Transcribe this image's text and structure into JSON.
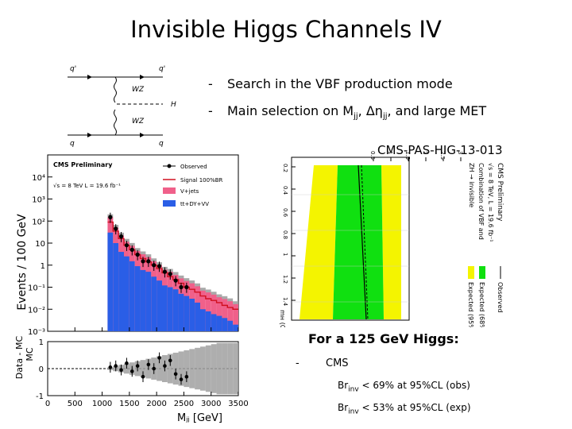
{
  "slide": {
    "title": "Invisible Higgs Channels IV",
    "bullets": [
      {
        "dash": "-",
        "pre": "Search in the VBF production mode",
        "sub": "",
        "mid": "",
        "sub2": "",
        "post": ""
      },
      {
        "dash": "-",
        "pre": "Main selection on M",
        "sub": "jj",
        "mid": ", Δη",
        "sub2": "jj",
        "post": ", and large MET"
      }
    ],
    "cms_tag": "CMS-PAS-HIG-13-013",
    "result_heading": "For a 125 GeV Higgs:",
    "experiment_dash": "-",
    "experiment": "CMS",
    "limits": [
      {
        "label": "Br",
        "sub": "inv",
        "text": " < 69% at 95%CL (obs)"
      },
      {
        "label": "Br",
        "sub": "inv",
        "text": " < 53% at 95%CL (exp)"
      }
    ]
  },
  "feynman": {
    "labels": {
      "q_in_top": "q",
      "q_out_top": "q'",
      "q_in_bot": "q",
      "q_out_bot": "q'",
      "boson_top": "WZ",
      "boson_bot": "WZ",
      "higgs": "H"
    }
  },
  "chart_data": {
    "type": "bar",
    "title": "",
    "header": "CMS Preliminary",
    "energy_label": "√s = 8 TeV L = 19.6 fb⁻¹",
    "ylabel": "Events / 100 GeV",
    "xlabel": "Mⱼⱼ [GeV]",
    "ratio_ylabel": "Data - MC",
    "ratio_ylabel2": "MC",
    "ylog": true,
    "ylim": [
      0.001,
      100000
    ],
    "y_ticks": [
      {
        "v": 10000,
        "label": "10⁴"
      },
      {
        "v": 1000,
        "label": "10³"
      },
      {
        "v": 100,
        "label": "10²"
      },
      {
        "v": 10,
        "label": "10"
      },
      {
        "v": 1,
        "label": "1"
      },
      {
        "v": 0.1,
        "label": "10⁻¹"
      },
      {
        "v": 0.01,
        "label": "10⁻²"
      },
      {
        "v": 0.001,
        "label": "10⁻³"
      }
    ],
    "x_ticks": [
      "0",
      "500",
      "1000",
      "1500",
      "2000",
      "2500",
      "3000",
      "3500"
    ],
    "xlim": [
      0,
      3500
    ],
    "ratio_ylim": [
      -1,
      1
    ],
    "ratio_ticks": [
      "1",
      "0",
      "-1"
    ],
    "legend": {
      "position": "top-right",
      "entries": [
        "Observed",
        "Signal 100%BR",
        "V+jets",
        "tt+DY+VV"
      ]
    },
    "colors": {
      "vjets": "#f0608a",
      "tt": "#2a5ee6",
      "signal": "#d01020",
      "uncert": "#a0a0a0"
    },
    "bin_edges": [
      1100,
      1200,
      1300,
      1400,
      1500,
      1600,
      1700,
      1800,
      1900,
      2000,
      2100,
      2200,
      2300,
      2400,
      2500,
      2600,
      2700,
      2800,
      2900,
      3000,
      3100,
      3200,
      3300,
      3400,
      3500
    ],
    "vjets": [
      120,
      40,
      18,
      9,
      6,
      3.5,
      2.5,
      1.8,
      1.2,
      0.8,
      0.5,
      0.4,
      0.28,
      0.2,
      0.15,
      0.12,
      0.09,
      0.06,
      0.05,
      0.04,
      0.03,
      0.025,
      0.02,
      0.015
    ],
    "tt": [
      30,
      10,
      4,
      2.5,
      1.5,
      0.9,
      0.6,
      0.5,
      0.3,
      0.2,
      0.12,
      0.1,
      0.08,
      0.05,
      0.04,
      0.03,
      0.02,
      0.01,
      0.008,
      0.006,
      0.005,
      0.004,
      0.003,
      0.002
    ],
    "signal": [
      90,
      35,
      16,
      8,
      5,
      3,
      2,
      1.4,
      1,
      0.7,
      0.45,
      0.3,
      0.22,
      0.15,
      0.1,
      0.08,
      0.06,
      0.04,
      0.03,
      0.025,
      0.02,
      0.015,
      0.012,
      0.01
    ],
    "observed": [
      150,
      45,
      20,
      8,
      5,
      3,
      1.5,
      1.5,
      1,
      0.9,
      0.5,
      0.4,
      0.2,
      0.1,
      0.1
    ],
    "ratio": [
      0.05,
      0.1,
      -0.05,
      0.2,
      -0.1,
      0.1,
      -0.3,
      0.15,
      0.0,
      0.4,
      0.1,
      0.3,
      -0.2,
      -0.4,
      -0.3
    ]
  },
  "limit_plot": {
    "header": "CMS Preliminary",
    "lines": [
      "√s = 8 TeV, L = 19.6 fb⁻¹",
      "Combination of VBF and",
      "ZH → invisible"
    ],
    "legend": [
      "Observed",
      "Expected (68%)",
      "Expected (95%)"
    ],
    "axis_label": "mʜ (GeV)",
    "ticks": [
      "0.2",
      "0.4",
      "0.6",
      "0.8",
      "1",
      "1.2",
      "1.4"
    ],
    "top_ticks": [
      "0.5",
      "1",
      "1.5",
      "2",
      "2.5",
      "3"
    ],
    "colors": {
      "band68": "#10e010",
      "band95": "#f4f400",
      "observed": "#000000"
    }
  }
}
